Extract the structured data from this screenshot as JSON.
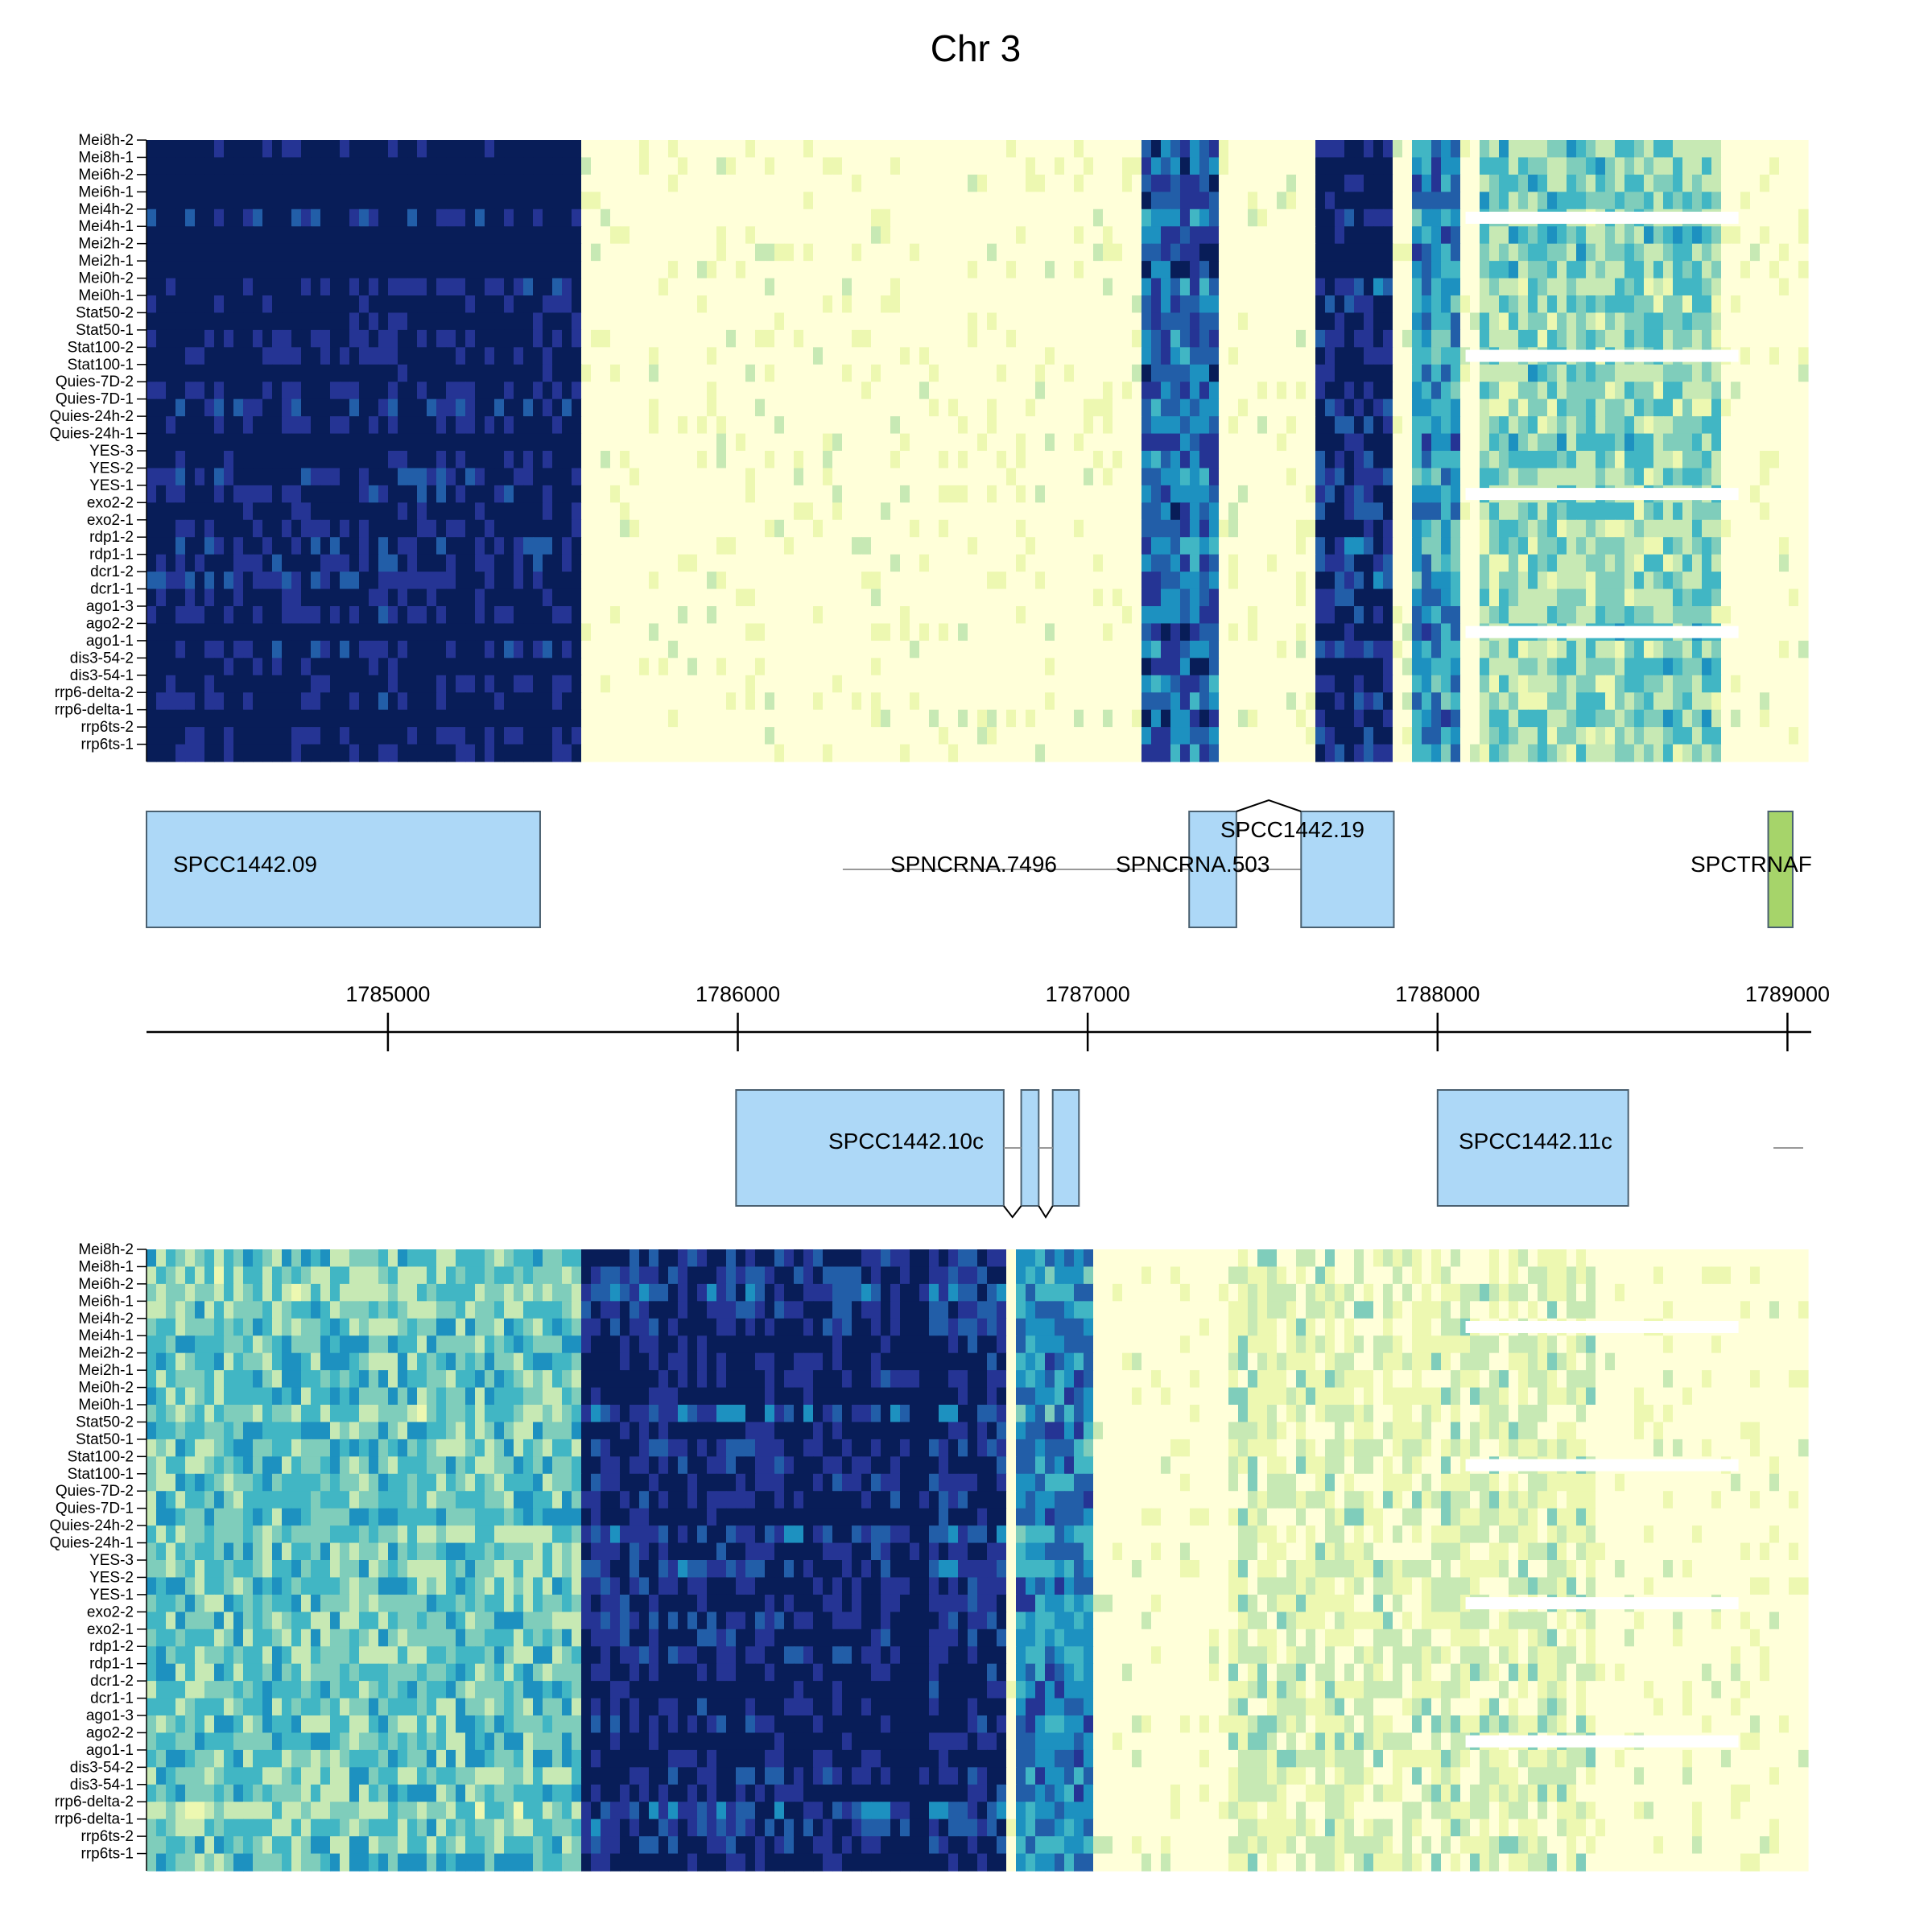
{
  "chart_data": {
    "type": "heatmap",
    "title": "Chr 3",
    "samples": [
      "Mei8h-2",
      "Mei8h-1",
      "Mei6h-2",
      "Mei6h-1",
      "Mei4h-2",
      "Mei4h-1",
      "Mei2h-2",
      "Mei2h-1",
      "Mei0h-2",
      "Mei0h-1",
      "Stat50-2",
      "Stat50-1",
      "Stat100-2",
      "Stat100-1",
      "Quies-7D-2",
      "Quies-7D-1",
      "Quies-24h-2",
      "Quies-24h-1",
      "YES-3",
      "YES-2",
      "YES-1",
      "exo2-2",
      "exo2-1",
      "rdp1-2",
      "rdp1-1",
      "dcr1-2",
      "dcr1-1",
      "ago1-3",
      "ago2-2",
      "ago1-1",
      "dis3-54-2",
      "dis3-54-1",
      "rrp6-delta-2",
      "rrp6-delta-1",
      "rrp6ts-2",
      "rrp6ts-1"
    ],
    "xlim": [
      1784310,
      1789045
    ],
    "x_ticks": [
      1785000,
      1786000,
      1787000,
      1788000,
      1789000
    ],
    "colors": [
      "#ffffd9",
      "#edf8b1",
      "#c7e9b4",
      "#7fcdbb",
      "#41b6c4",
      "#1d91c0",
      "#225ea8",
      "#253494",
      "#081d58"
    ],
    "missing_rows": {
      "top": [
        "Mei4h-2",
        "Stat100-2",
        "YES-1",
        "ago2-2"
      ],
      "bottom": [
        "Mei4h-2",
        "Stat100-2",
        "YES-1",
        "ago2-2"
      ]
    },
    "top_track": {
      "strand": "+",
      "genes": [
        {
          "name": "SPCC1442.09",
          "exons": [
            [
              1784310,
              1785435
            ]
          ],
          "color": "#add8f7"
        },
        {
          "name": "SPNCRNA.7496",
          "exons": [],
          "line": [
            1786300,
            1786980
          ],
          "color": "#add8f7"
        },
        {
          "name": "SPNCRNA.503",
          "exons": [],
          "line": [
            1786980,
            1787610
          ],
          "color": "#add8f7"
        },
        {
          "name": "SPCC1442.19",
          "exons": [
            [
              1787290,
              1787425
            ],
            [
              1787610,
              1787875
            ]
          ],
          "intron_caret": "up",
          "color": "#add8f7"
        },
        {
          "name": "SPCTRNAF",
          "exons": [
            [
              1788945,
              1789015
            ]
          ],
          "color": "#a6d46a"
        }
      ],
      "signal_bands": [
        [
          1784310,
          1785530,
          1.0
        ],
        [
          1787140,
          1787360,
          0.72
        ],
        [
          1787650,
          1787860,
          0.92
        ],
        [
          1787920,
          1788060,
          0.6
        ],
        [
          1788100,
          1788800,
          0.38
        ]
      ]
    },
    "bottom_track": {
      "strand": "-",
      "genes": [
        {
          "name": "SPCC1442.10c",
          "exons": [
            [
              1785995,
              1786760
            ],
            [
              1786810,
              1786860
            ],
            [
              1786900,
              1786975
            ]
          ],
          "intron_caret": "down",
          "color": "#add8f7"
        },
        {
          "name": "SPCC1442.11c",
          "exons": [
            [
              1788000,
              1788545
            ]
          ],
          "color": "#add8f7"
        },
        {
          "name": "",
          "exons": [],
          "line": [
            1788960,
            1789045
          ],
          "color": "#add8f7"
        }
      ],
      "signal_bands": [
        [
          1784310,
          1785540,
          0.42
        ],
        [
          1785540,
          1786000,
          0.88
        ],
        [
          1786000,
          1786460,
          0.9
        ],
        [
          1786460,
          1786530,
          1.0
        ],
        [
          1786530,
          1786740,
          0.85
        ],
        [
          1786790,
          1786990,
          0.62
        ],
        [
          1787390,
          1788450,
          0.18
        ]
      ]
    }
  }
}
